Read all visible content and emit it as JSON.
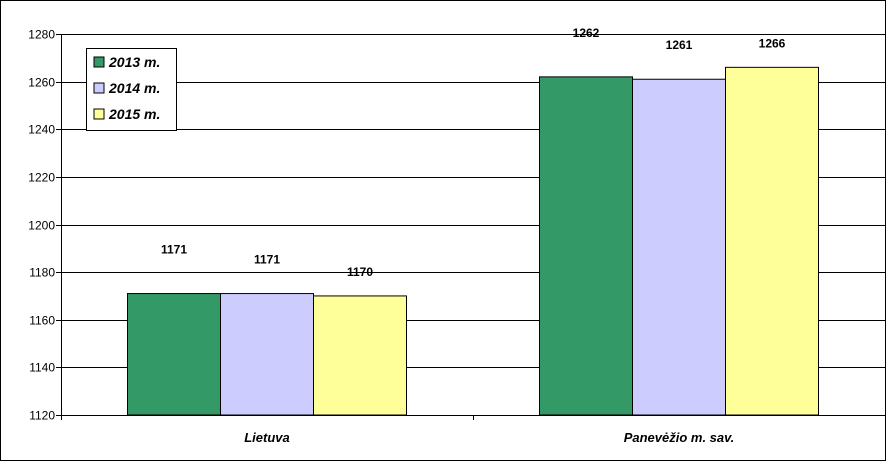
{
  "chart_data": {
    "type": "bar",
    "categories": [
      "Lietuva",
      "Panevėžio m. sav."
    ],
    "series": [
      {
        "name": "2013 m.",
        "values": [
          1171,
          1262
        ],
        "color": "#339966"
      },
      {
        "name": "2014 m.",
        "values": [
          1171,
          1261
        ],
        "color": "#ccccff"
      },
      {
        "name": "2015 m.",
        "values": [
          1170,
          1266
        ],
        "color": "#ffff99"
      }
    ],
    "data_labels": [
      [
        "1171",
        "1262"
      ],
      [
        "1171",
        "1261"
      ],
      [
        "1170",
        "1266"
      ]
    ],
    "ylim": [
      1120,
      1280
    ],
    "y_ticks": [
      1120,
      1140,
      1160,
      1180,
      1200,
      1220,
      1240,
      1260,
      1280
    ],
    "grid": true,
    "legend_position": "top-left",
    "title": "",
    "xlabel": "",
    "ylabel": ""
  }
}
